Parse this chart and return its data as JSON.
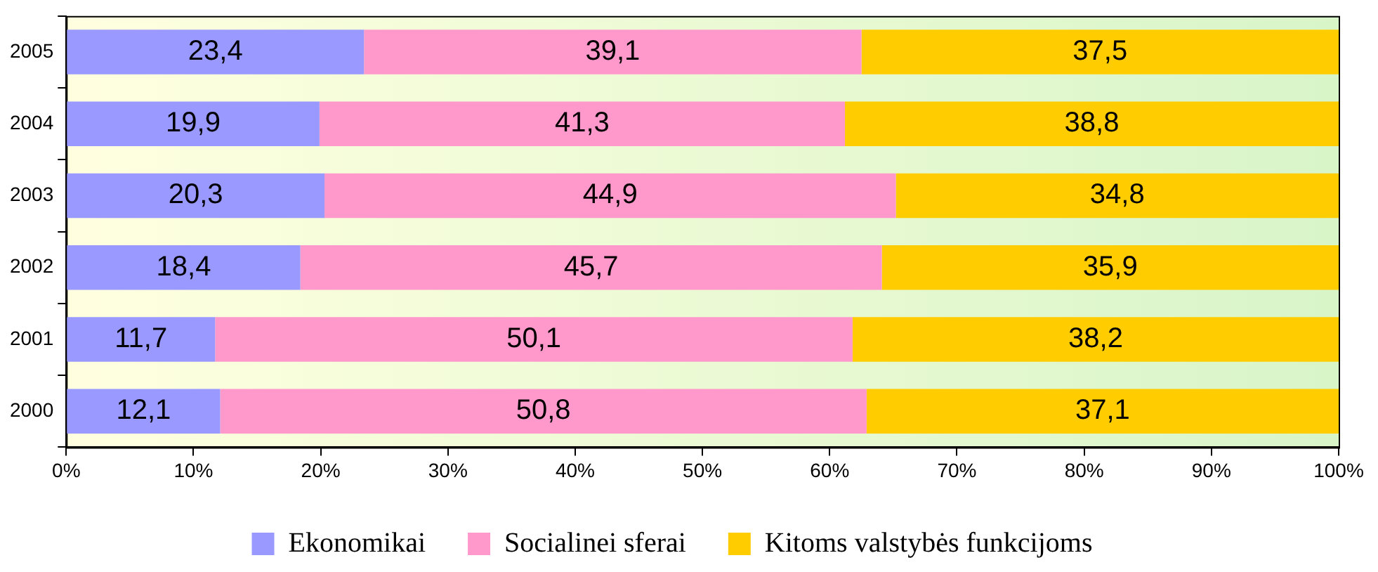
{
  "chart_data": {
    "type": "bar",
    "orientation": "horizontal",
    "stacked": true,
    "categories": [
      "2005",
      "2004",
      "2003",
      "2002",
      "2001",
      "2000"
    ],
    "series": [
      {
        "name": "Ekonomikai",
        "color": "#9999ff",
        "values": [
          23.4,
          19.9,
          20.3,
          18.4,
          11.7,
          12.1
        ],
        "value_labels": [
          "23,4",
          "19,9",
          "20,3",
          "18,4",
          "11,7",
          "12,1"
        ]
      },
      {
        "name": "Socialinei sferai",
        "color": "#ff99cc",
        "values": [
          39.1,
          41.3,
          44.9,
          45.7,
          50.1,
          50.8
        ],
        "value_labels": [
          "39,1",
          "41,3",
          "44,9",
          "45,7",
          "50,1",
          "50,8"
        ]
      },
      {
        "name": "Kitoms valstybės funkcijoms",
        "color": "#ffcc00",
        "values": [
          37.5,
          38.8,
          34.8,
          35.9,
          38.2,
          37.1
        ],
        "value_labels": [
          "37,5",
          "38,8",
          "34,8",
          "35,9",
          "38,2",
          "37,1"
        ]
      }
    ],
    "xlim": [
      0,
      100
    ],
    "xticks": [
      {
        "value": 0,
        "label": "0%"
      },
      {
        "value": 10,
        "label": "10%"
      },
      {
        "value": 20,
        "label": "20%"
      },
      {
        "value": 30,
        "label": "30%"
      },
      {
        "value": 40,
        "label": "40%"
      },
      {
        "value": 50,
        "label": "50%"
      },
      {
        "value": 60,
        "label": "60%"
      },
      {
        "value": 70,
        "label": "70%"
      },
      {
        "value": 80,
        "label": "80%"
      },
      {
        "value": 90,
        "label": "90%"
      },
      {
        "value": 100,
        "label": "100%"
      }
    ],
    "legend": "bottom"
  }
}
